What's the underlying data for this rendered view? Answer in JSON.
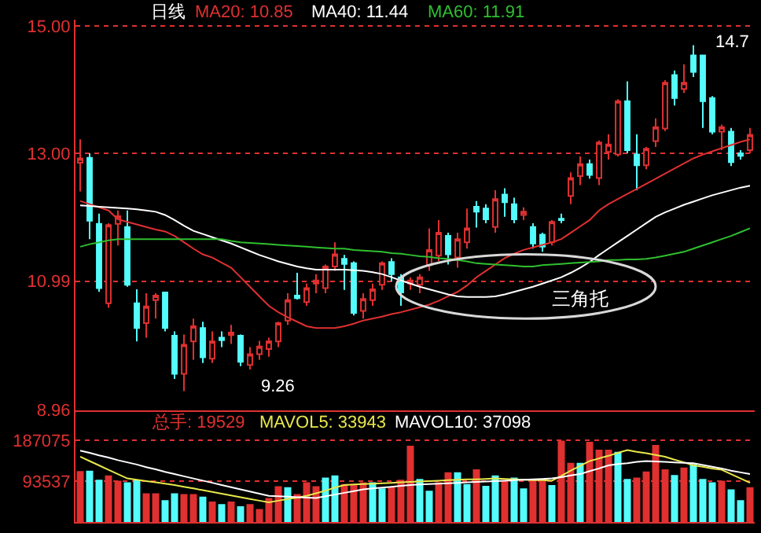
{
  "chart_data": [
    {
      "type": "candlestick",
      "categories": [
        null,
        null,
        null,
        null,
        null,
        null,
        null,
        null,
        null,
        null,
        null,
        null,
        null,
        null,
        null,
        null,
        null,
        null,
        null,
        null,
        null,
        null,
        null,
        null,
        null,
        null,
        null,
        null,
        null,
        null,
        null,
        null,
        null,
        null,
        null,
        null,
        null,
        null,
        null,
        null,
        null,
        null,
        null,
        null,
        null,
        null,
        null,
        null,
        null,
        null,
        null,
        null,
        null,
        null,
        null,
        null,
        null,
        null,
        null,
        null,
        null,
        null,
        null,
        null,
        null,
        null,
        null,
        null,
        null,
        null,
        null,
        null
      ],
      "ohlc": [
        [
          12.85,
          13.22,
          12.4,
          12.92
        ],
        [
          12.93,
          13.0,
          11.65,
          11.94
        ],
        [
          11.89,
          12.05,
          10.82,
          10.88
        ],
        [
          10.64,
          11.9,
          10.57,
          11.87
        ],
        [
          11.89,
          12.1,
          11.55,
          12.01
        ],
        [
          11.84,
          12.1,
          10.9,
          10.93
        ],
        [
          10.64,
          10.86,
          10.04,
          10.25
        ],
        [
          10.33,
          10.8,
          10.1,
          10.59
        ],
        [
          10.69,
          10.8,
          10.4,
          10.76
        ],
        [
          10.81,
          10.81,
          10.2,
          10.25
        ],
        [
          10.13,
          10.2,
          9.45,
          9.53
        ],
        [
          9.53,
          10.15,
          9.26,
          9.99
        ],
        [
          10.04,
          10.4,
          9.75,
          10.28
        ],
        [
          10.25,
          10.35,
          9.7,
          9.79
        ],
        [
          9.77,
          10.2,
          9.7,
          10.04
        ],
        [
          10.1,
          10.2,
          9.95,
          10.06
        ],
        [
          10.14,
          10.3,
          10.0,
          10.18
        ],
        [
          10.13,
          10.15,
          9.65,
          9.72
        ],
        [
          9.67,
          9.95,
          9.6,
          9.84
        ],
        [
          9.84,
          10.05,
          9.75,
          9.96
        ],
        [
          9.92,
          10.1,
          9.8,
          10.04
        ],
        [
          10.04,
          10.35,
          9.95,
          10.33
        ],
        [
          10.37,
          10.8,
          10.3,
          10.69
        ],
        [
          10.76,
          11.12,
          10.7,
          10.72
        ],
        [
          10.66,
          10.95,
          10.6,
          10.88
        ],
        [
          10.95,
          11.1,
          10.8,
          11.0
        ],
        [
          10.88,
          11.25,
          10.8,
          11.22
        ],
        [
          11.22,
          11.6,
          11.15,
          11.41
        ],
        [
          11.34,
          11.4,
          10.85,
          11.26
        ],
        [
          11.27,
          11.3,
          10.45,
          10.49
        ],
        [
          10.52,
          10.8,
          10.4,
          10.71
        ],
        [
          10.69,
          10.95,
          10.6,
          10.86
        ],
        [
          10.93,
          11.3,
          10.85,
          11.27
        ],
        [
          11.29,
          11.35,
          10.98,
          11.1
        ],
        [
          11.05,
          11.1,
          10.6,
          10.81
        ],
        [
          10.95,
          11.05,
          10.85,
          11.0
        ],
        [
          10.93,
          11.1,
          10.8,
          11.05
        ],
        [
          11.24,
          11.82,
          11.15,
          11.48
        ],
        [
          11.39,
          11.95,
          11.3,
          11.75
        ],
        [
          11.7,
          11.75,
          11.25,
          11.41
        ],
        [
          11.36,
          11.75,
          11.2,
          11.65
        ],
        [
          11.6,
          12.13,
          11.5,
          11.82
        ],
        [
          12.16,
          12.25,
          11.83,
          12.08
        ],
        [
          12.13,
          12.2,
          11.9,
          11.96
        ],
        [
          11.84,
          12.42,
          11.75,
          12.28
        ],
        [
          12.35,
          12.45,
          12.0,
          12.23
        ],
        [
          12.2,
          12.3,
          11.9,
          11.96
        ],
        [
          12.03,
          12.15,
          11.95,
          12.08
        ],
        [
          11.84,
          11.9,
          11.5,
          11.58
        ],
        [
          11.72,
          11.75,
          11.45,
          11.53
        ],
        [
          11.6,
          11.95,
          11.55,
          11.92
        ],
        [
          11.97,
          12.05,
          11.9,
          11.95
        ],
        [
          12.33,
          12.7,
          12.2,
          12.61
        ],
        [
          12.64,
          12.95,
          12.5,
          12.83
        ],
        [
          12.83,
          12.9,
          12.6,
          12.66
        ],
        [
          12.61,
          13.2,
          12.5,
          13.17
        ],
        [
          13.02,
          13.3,
          12.9,
          13.14
        ],
        [
          12.98,
          13.85,
          12.95,
          13.82
        ],
        [
          13.82,
          14.13,
          13.0,
          13.05
        ],
        [
          12.98,
          13.3,
          12.42,
          12.81
        ],
        [
          12.81,
          13.1,
          12.75,
          13.07
        ],
        [
          13.19,
          13.55,
          13.1,
          13.41
        ],
        [
          13.39,
          14.15,
          13.35,
          14.11
        ],
        [
          14.23,
          14.3,
          13.75,
          13.87
        ],
        [
          14.01,
          14.4,
          13.95,
          14.11
        ],
        [
          14.54,
          14.7,
          14.2,
          14.28
        ],
        [
          14.54,
          14.55,
          13.4,
          13.82
        ],
        [
          13.87,
          13.9,
          13.3,
          13.34
        ],
        [
          13.34,
          13.45,
          13.05,
          13.41
        ],
        [
          13.34,
          13.4,
          12.8,
          12.86
        ],
        [
          13.0,
          13.05,
          12.9,
          12.96
        ],
        [
          13.05,
          13.4,
          13.0,
          13.29
        ]
      ],
      "series": [
        {
          "name": "MA20: 10.85",
          "type": "line",
          "color": "#e03030",
          "values": [
            12.25,
            12.2,
            12.15,
            12.1,
            11.96,
            11.92,
            11.88,
            11.84,
            11.8,
            11.77,
            11.7,
            11.6,
            11.5,
            11.41,
            11.36,
            11.28,
            11.2,
            11.05,
            10.9,
            10.75,
            10.6,
            10.5,
            10.42,
            10.35,
            10.28,
            10.25,
            10.25,
            10.25,
            10.28,
            10.32,
            10.37,
            10.4,
            10.43,
            10.47,
            10.5,
            10.54,
            10.58,
            10.62,
            10.68,
            10.75,
            10.82,
            10.92,
            11.05,
            11.15,
            11.25,
            11.35,
            11.42,
            11.48,
            11.52,
            11.56,
            11.6,
            11.65,
            11.75,
            11.85,
            11.95,
            12.1,
            12.2,
            12.28,
            12.36,
            12.44,
            12.52,
            12.6,
            12.68,
            12.76,
            12.84,
            12.92,
            12.98,
            13.03,
            13.08,
            13.13,
            13.18,
            13.22
          ]
        },
        {
          "name": "MA40: 11.44",
          "type": "line",
          "color": "#ffffff",
          "values": [
            12.18,
            12.17,
            12.16,
            12.15,
            12.14,
            12.13,
            12.12,
            12.1,
            12.08,
            12.03,
            11.95,
            11.86,
            11.78,
            11.73,
            11.68,
            11.63,
            11.58,
            11.52,
            11.46,
            11.4,
            11.35,
            11.3,
            11.26,
            11.22,
            11.19,
            11.17,
            11.17,
            11.17,
            11.17,
            11.16,
            11.15,
            11.13,
            11.1,
            11.05,
            11.0,
            10.95,
            10.9,
            10.86,
            10.82,
            10.78,
            10.75,
            10.74,
            10.74,
            10.74,
            10.75,
            10.78,
            10.82,
            10.86,
            10.9,
            10.95,
            11.0,
            11.05,
            11.12,
            11.2,
            11.29,
            11.4,
            11.5,
            11.6,
            11.7,
            11.8,
            11.9,
            12.0,
            12.07,
            12.13,
            12.19,
            12.24,
            12.29,
            12.34,
            12.38,
            12.42,
            12.46,
            12.49
          ]
        },
        {
          "name": "MA60: 11.91",
          "type": "line",
          "color": "#2fbf2f",
          "values": [
            11.53,
            11.57,
            11.6,
            11.63,
            11.65,
            11.65,
            11.65,
            11.65,
            11.65,
            11.65,
            11.65,
            11.65,
            11.65,
            11.65,
            11.65,
            11.65,
            11.62,
            11.6,
            11.59,
            11.58,
            11.57,
            11.56,
            11.55,
            11.54,
            11.53,
            11.52,
            11.51,
            11.5,
            11.5,
            11.48,
            11.47,
            11.46,
            11.45,
            11.43,
            11.42,
            11.4,
            11.38,
            11.37,
            11.35,
            11.34,
            11.32,
            11.3,
            11.27,
            11.26,
            11.25,
            11.24,
            11.23,
            11.22,
            11.22,
            11.24,
            11.25,
            11.26,
            11.27,
            11.28,
            11.29,
            11.3,
            11.32,
            11.32,
            11.33,
            11.33,
            11.34,
            11.36,
            11.39,
            11.42,
            11.45,
            11.5,
            11.55,
            11.6,
            11.65,
            11.7,
            11.76,
            11.82
          ]
        }
      ],
      "annotations": [
        "日线",
        "三角托",
        "14.7",
        "9.26"
      ],
      "ylim": [
        8.96,
        15.1
      ],
      "yticks": [
        8.96,
        10.99,
        {
          "value": 13,
          "label": "13.00"
        },
        {
          "value": 15,
          "label": "15.00"
        }
      ],
      "grid": "y",
      "tick_labels": "y"
    },
    {
      "type": "bar",
      "categories": [
        null,
        null,
        null,
        null,
        null,
        null,
        null,
        null,
        null,
        null,
        null,
        null,
        null,
        null,
        null,
        null,
        null,
        null,
        null,
        null,
        null,
        null,
        null,
        null,
        null,
        null,
        null,
        null,
        null,
        null,
        null,
        null,
        null,
        null,
        null,
        null,
        null,
        null,
        null,
        null,
        null,
        null,
        null,
        null,
        null,
        null,
        null,
        null,
        null,
        null,
        null,
        null,
        null,
        null,
        null,
        null,
        null,
        null,
        null,
        null,
        null,
        null,
        null,
        null,
        null,
        null,
        null,
        null,
        null,
        null,
        null,
        null
      ],
      "series": [
        {
          "name": "总手: 19529",
          "type": "bar",
          "colors": [
            "#e03030",
            "#54fcfc",
            "#54fcfc",
            "#e03030",
            "#e03030",
            "#54fcfc",
            "#54fcfc",
            "#e03030",
            "#e03030",
            "#54fcfc",
            "#54fcfc",
            "#e03030",
            "#e03030",
            "#54fcfc",
            "#e03030",
            "#54fcfc",
            "#e03030",
            "#54fcfc",
            "#e03030",
            "#e03030",
            "#e03030",
            "#e03030",
            "#54fcfc",
            "#e03030",
            "#e03030",
            "#e03030",
            "#54fcfc",
            "#54fcfc",
            "#e03030",
            "#e03030",
            "#e03030",
            "#54fcfc",
            "#54fcfc",
            "#e03030",
            "#e03030",
            "#e03030",
            "#54fcfc",
            "#54fcfc",
            "#e03030",
            "#e03030",
            "#54fcfc",
            "#54fcfc",
            "#e03030",
            "#54fcfc",
            "#54fcfc",
            "#e03030",
            "#54fcfc",
            "#54fcfc",
            "#e03030",
            "#e03030",
            "#54fcfc",
            "#e03030",
            "#e03030",
            "#54fcfc",
            "#e03030",
            "#e03030",
            "#e03030",
            "#54fcfc",
            "#54fcfc",
            "#e03030",
            "#e03030",
            "#e03030",
            "#e03030",
            "#54fcfc",
            "#e03030",
            "#54fcfc",
            "#54fcfc",
            "#54fcfc",
            "#e03030",
            "#54fcfc",
            "#54fcfc",
            "#e03030"
          ],
          "values": [
            117000,
            118000,
            97000,
            107000,
            95000,
            91000,
            97000,
            66000,
            66000,
            50000,
            66000,
            64000,
            64000,
            58000,
            47000,
            41000,
            47000,
            36000,
            41000,
            30000,
            55000,
            82000,
            80000,
            64000,
            91000,
            82000,
            102000,
            107000,
            87000,
            87000,
            91000,
            91000,
            77000,
            80000,
            97000,
            175000,
            99000,
            72000,
            91000,
            114000,
            114000,
            87000,
            121000,
            83000,
            107000,
            95000,
            102000,
            77000,
            97000,
            95000,
            85000,
            187000,
            136000,
            136000,
            184000,
            166000,
            166000,
            161000,
            99000,
            102000,
            116000,
            177000,
            121000,
            108000,
            125000,
            133000,
            99000,
            91000,
            95000,
            75000,
            50000,
            80000
          ]
        },
        {
          "name": "MAVOL5: 33943",
          "type": "line",
          "color": "#e8e84a",
          "values": [
            150000,
            140000,
            130000,
            120000,
            110000,
            100000,
            97000,
            94000,
            91000,
            88000,
            85000,
            81000,
            77000,
            73000,
            69000,
            65000,
            61000,
            57000,
            53000,
            49000,
            45000,
            49000,
            53000,
            56000,
            60000,
            66000,
            72000,
            79000,
            85000,
            86000,
            87000,
            88000,
            89000,
            90000,
            91000,
            92000,
            93000,
            94000,
            95000,
            96000,
            97000,
            98000,
            98000,
            99000,
            100000,
            99000,
            98000,
            97000,
            96000,
            96000,
            95000,
            106000,
            118000,
            129000,
            140000,
            146000,
            152000,
            159000,
            165000,
            161000,
            158000,
            154000,
            150000,
            143000,
            137000,
            130000,
            127000,
            123000,
            120000,
            110000,
            100000,
            90000
          ]
        },
        {
          "name": "MAVOL10: 37098",
          "type": "line",
          "color": "#ffffff",
          "values": [
            164000,
            159000,
            153000,
            148000,
            142000,
            137000,
            132000,
            126000,
            121000,
            115000,
            110000,
            105000,
            100000,
            95000,
            90000,
            85000,
            80000,
            75000,
            70000,
            65000,
            60000,
            59000,
            58000,
            57000,
            56000,
            55000,
            59000,
            63000,
            67000,
            71000,
            75000,
            77000,
            79000,
            81000,
            83000,
            85000,
            86000,
            87000,
            88000,
            89000,
            90000,
            91000,
            92000,
            93000,
            94000,
            95000,
            96000,
            97000,
            98000,
            99000,
            100000,
            103000,
            107000,
            110000,
            117000,
            123000,
            130000,
            133000,
            135000,
            138000,
            140000,
            139000,
            138000,
            137000,
            136000,
            135000,
            131000,
            127000,
            123000,
            118000,
            114000,
            110000
          ]
        }
      ],
      "ylim": [
        0,
        257000
      ],
      "yticks": [
        93537,
        187075
      ],
      "grid": "y",
      "tick_labels": "y"
    }
  ]
}
